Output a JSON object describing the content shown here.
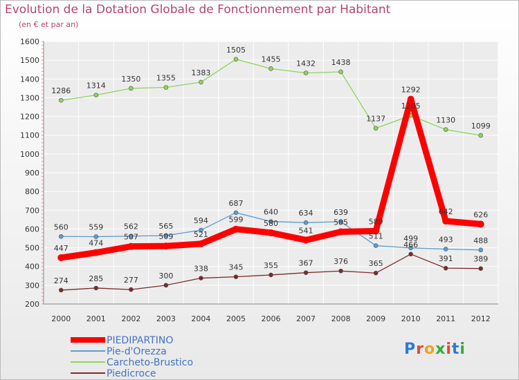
{
  "title": "Evolution de la Dotation Globale de Fonctionnement par Habitant",
  "subtitle": "(en € et par an)",
  "logo": {
    "letters": [
      "P",
      "r",
      "o",
      "x",
      "i",
      "t",
      "i"
    ],
    "colors": [
      "#2b7bd6",
      "#e8462c",
      "#f0a21b",
      "#37a83a",
      "#e8462c",
      "#2b7bd6",
      "#37a83a"
    ]
  },
  "chart_data": {
    "type": "line",
    "x": [
      "2000",
      "2001",
      "2002",
      "2003",
      "2004",
      "2005",
      "2006",
      "2007",
      "2008",
      "2009",
      "2010",
      "2011",
      "2012"
    ],
    "ylim": [
      200,
      1600
    ],
    "yticks": [
      200,
      300,
      400,
      500,
      600,
      700,
      800,
      900,
      1000,
      1100,
      1200,
      1300,
      1400,
      1500,
      1600
    ],
    "grid": true,
    "legend_position": "bottom-left",
    "series": [
      {
        "name": "PIEDIPARTINO",
        "color": "#ff0000",
        "values": [
          447,
          474,
          507,
          509,
          521,
          599,
          580,
          541,
          585,
          589,
          1292,
          642,
          626
        ]
      },
      {
        "name": "Pie-d'Orezza",
        "color": "#5b9bd5",
        "values": [
          560,
          559,
          562,
          565,
          594,
          687,
          640,
          634,
          639,
          511,
          499,
          493,
          488
        ]
      },
      {
        "name": "Carcheto-Brustico",
        "color": "#8ed35b",
        "values": [
          1286,
          1314,
          1350,
          1355,
          1383,
          1505,
          1455,
          1432,
          1438,
          1137,
          1205,
          1130,
          1099
        ]
      },
      {
        "name": "Piedicroce",
        "color": "#7b2a2a",
        "values": [
          274,
          285,
          277,
          300,
          338,
          345,
          355,
          367,
          376,
          365,
          466,
          391,
          389
        ]
      }
    ]
  }
}
